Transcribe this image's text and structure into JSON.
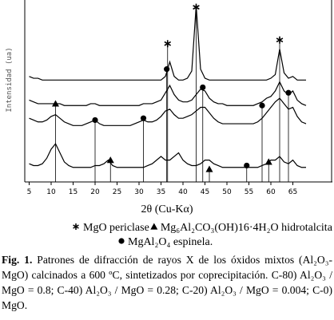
{
  "chart_data": {
    "type": "line",
    "y_label": "Intensidad (ua)",
    "x_label": "2θ (Cu-Kα)",
    "xlim": [
      4,
      74
    ],
    "ylim": [
      0,
      100
    ],
    "xticks": [
      5,
      10,
      15,
      20,
      25,
      30,
      35,
      40,
      45,
      50,
      55,
      60,
      65
    ],
    "x": [
      5,
      6,
      7,
      8,
      9,
      10,
      11,
      12,
      13,
      14,
      15,
      16,
      17,
      18,
      19,
      20,
      21,
      22,
      23,
      24,
      25,
      26,
      27,
      28,
      29,
      30,
      31,
      32,
      33,
      34,
      35,
      36,
      37,
      38,
      39,
      40,
      41,
      42,
      43,
      44,
      45,
      46,
      47,
      48,
      49,
      50,
      51,
      52,
      53,
      54,
      55,
      56,
      57,
      58,
      59,
      60,
      61,
      62,
      63,
      64,
      65,
      66,
      67,
      68
    ],
    "series": [
      {
        "color": "#000000",
        "values": [
          58,
          57,
          57,
          56,
          56,
          56,
          56,
          56,
          56,
          56,
          56,
          56,
          56,
          56,
          56,
          56,
          56,
          56,
          56,
          56,
          56,
          56,
          56,
          56,
          56,
          56,
          56,
          56,
          56,
          56,
          56,
          58,
          66,
          58,
          56,
          56,
          57,
          61,
          97,
          62,
          57,
          56,
          56,
          56,
          56,
          56,
          56,
          56,
          56,
          56,
          56,
          56,
          56,
          56,
          56,
          57,
          59,
          73,
          60,
          57,
          58,
          56,
          56,
          56
        ]
      },
      {
        "color": "#000000",
        "values": [
          45,
          44,
          43,
          43,
          43,
          43,
          43,
          43,
          42,
          42,
          42,
          42,
          42,
          42,
          43,
          43,
          42,
          42,
          42,
          42,
          42,
          42,
          42,
          42,
          42,
          42,
          43,
          43,
          43,
          44,
          45,
          49,
          53,
          48,
          45,
          44,
          44,
          45,
          48,
          51,
          50,
          46,
          44,
          43,
          43,
          42,
          42,
          42,
          42,
          42,
          42,
          42,
          43,
          44,
          46,
          47,
          50,
          55,
          50,
          48,
          50,
          45,
          43,
          42
        ]
      },
      {
        "color": "#000000",
        "values": [
          35,
          34,
          33,
          33,
          34,
          36,
          37,
          35,
          33,
          32,
          31,
          31,
          31,
          32,
          33,
          34,
          32,
          31,
          31,
          31,
          31,
          31,
          31,
          31,
          32,
          33,
          34,
          33,
          33,
          34,
          36,
          39,
          40,
          37,
          35,
          35,
          36,
          37,
          39,
          41,
          41,
          38,
          35,
          33,
          32,
          32,
          32,
          32,
          32,
          32,
          32,
          32,
          33,
          35,
          38,
          41,
          44,
          46,
          43,
          40,
          41,
          36,
          33,
          32
        ]
      },
      {
        "color": "#000000",
        "values": [
          10,
          9,
          9,
          10,
          13,
          18,
          21,
          16,
          11,
          9,
          8,
          8,
          8,
          8,
          8,
          9,
          9,
          10,
          12,
          9,
          8,
          8,
          8,
          8,
          8,
          8,
          8,
          9,
          10,
          12,
          14,
          12,
          12,
          14,
          16,
          12,
          10,
          9,
          9,
          10,
          12,
          12,
          10,
          9,
          8,
          8,
          8,
          8,
          8,
          8,
          8,
          8,
          8,
          9,
          10,
          12,
          12,
          14,
          11,
          10,
          12,
          9,
          8,
          8
        ]
      }
    ],
    "star_markers": [
      {
        "x": 43,
        "y": 96
      },
      {
        "x": 36.5,
        "y": 76
      },
      {
        "x": 62,
        "y": 78
      }
    ],
    "triangle_markers": [
      {
        "x": 11,
        "y": 43
      },
      {
        "x": 23.5,
        "y": 12
      },
      {
        "x": 46,
        "y": 7
      },
      {
        "x": 59.5,
        "y": 11
      }
    ],
    "circle_markers": [
      {
        "x": 20,
        "y": 34
      },
      {
        "x": 31,
        "y": 35
      },
      {
        "x": 36.3,
        "y": 62
      },
      {
        "x": 44.5,
        "y": 52
      },
      {
        "x": 54.5,
        "y": 9
      },
      {
        "x": 58,
        "y": 42
      },
      {
        "x": 64,
        "y": 49
      }
    ],
    "legend": [
      "MgO periclase",
      "Mg₆Al₂CO₃(OH)16·4H₂O hidrotalcita",
      "MgAl₂O₄ espinela."
    ]
  },
  "caption": {
    "label": "Fig. 1.",
    "text": "Patrones de difracción de rayos X de los óxidos mixtos (Al₂O₃-MgO) calcinados a 600 ºC, sintetizados por coprecipitación. C-80) Al₂O₃ / MgO = 0.8; C-40) Al₂O₃ / MgO = 0.28; C-20) Al₂O₃ / MgO = 0.004; C-0) MgO."
  }
}
